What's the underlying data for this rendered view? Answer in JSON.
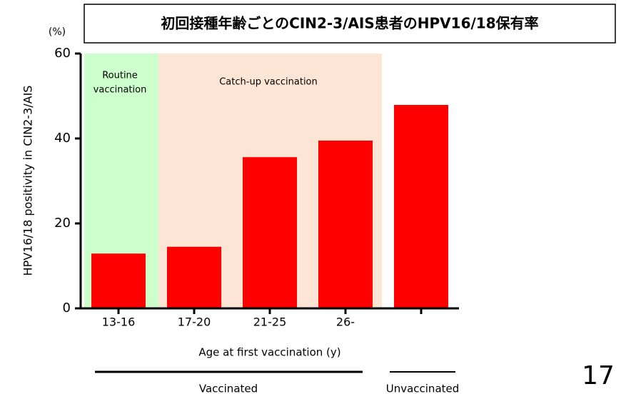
{
  "chart_data": {
    "type": "bar",
    "title": "初回接種年齢ごとのCIN2-3/AIS患者のHPV16/18保有率",
    "y_unit": "(%)",
    "y_label": "HPV16/18 positivity in CIN2-3/AIS",
    "x_label": "Age at first vaccination (y)",
    "categories": [
      "13-16",
      "17-20",
      "21-25",
      "26-",
      null
    ],
    "values": [
      12.9,
      14.5,
      35.6,
      39.5,
      47.9
    ],
    "color": "#ff0000",
    "ylim": [
      0,
      60
    ],
    "yticks": [
      0,
      20,
      40,
      60
    ],
    "grid": false,
    "annotations": [
      [
        "Routine",
        "vaccination"
      ],
      [
        "Catch-up vaccination"
      ]
    ],
    "groups": [
      "Vaccinated",
      "Unvaccinated"
    ]
  },
  "page_number": "17"
}
